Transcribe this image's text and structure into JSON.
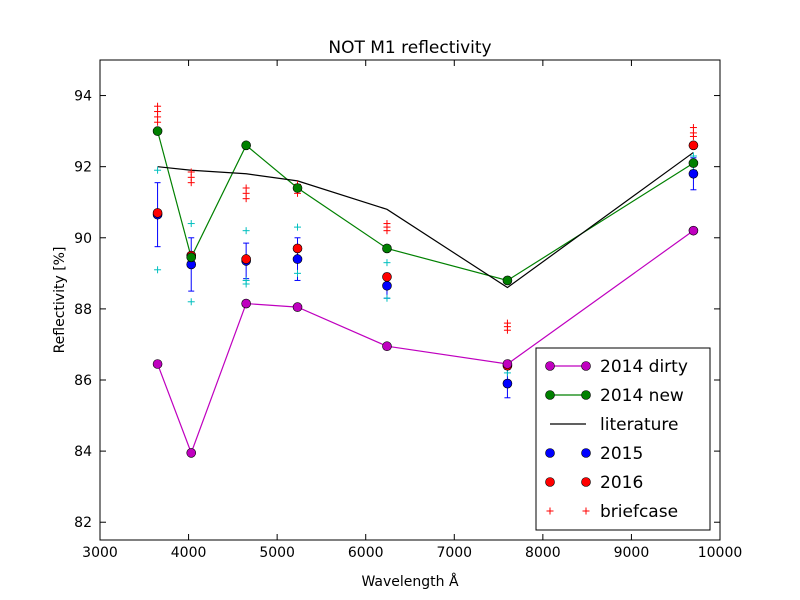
{
  "chart_data": {
    "type": "scatter",
    "title": "NOT M1 reflectivity",
    "xlabel": "Wavelength Å",
    "ylabel": "Reflectivity [%]",
    "xlim": [
      3000,
      10000
    ],
    "ylim": [
      81.5,
      95
    ],
    "xticks": [
      3000,
      4000,
      5000,
      6000,
      7000,
      8000,
      9000,
      10000
    ],
    "yticks": [
      82,
      84,
      86,
      88,
      90,
      92,
      94
    ],
    "grid": false,
    "legend_position": "bottom-right",
    "series": [
      {
        "name": "2014 dirty",
        "style": "line-marker",
        "color": "#bf00bf",
        "x": [
          3650,
          4030,
          4650,
          5230,
          6240,
          7600,
          9700
        ],
        "y": [
          86.45,
          83.95,
          88.15,
          88.05,
          86.95,
          86.45,
          90.2
        ]
      },
      {
        "name": "2014 new",
        "style": "line-marker",
        "color": "#008000",
        "x": [
          3650,
          4030,
          4650,
          5230,
          6240,
          7600,
          9700
        ],
        "y": [
          93.0,
          89.45,
          92.6,
          91.4,
          89.7,
          88.8,
          92.1
        ]
      },
      {
        "name": "literature",
        "style": "line",
        "color": "#000000",
        "x": [
          3650,
          4030,
          4650,
          5230,
          6240,
          7600,
          9700
        ],
        "y": [
          92.0,
          91.9,
          91.8,
          91.6,
          90.8,
          88.6,
          92.4
        ]
      },
      {
        "name": "2015",
        "style": "marker-errorbar",
        "color": "#0000ff",
        "x": [
          3650,
          4030,
          4650,
          5230,
          6240,
          7600,
          9700
        ],
        "y": [
          90.65,
          89.25,
          89.35,
          89.4,
          88.65,
          85.9,
          91.8
        ],
        "yerr": [
          0.9,
          0.75,
          0.5,
          0.6,
          0.35,
          0.4,
          0.45
        ]
      },
      {
        "name": "2016",
        "style": "marker",
        "color": "#ff0000",
        "x": [
          3650,
          4030,
          4650,
          5230,
          6240,
          7600,
          9700
        ],
        "y": [
          90.7,
          89.5,
          89.4,
          89.7,
          88.9,
          86.4,
          92.6
        ]
      },
      {
        "name": "briefcase",
        "style": "plus",
        "color": "#ff0000",
        "x": [
          3650,
          3650,
          3650,
          3650,
          4030,
          4030,
          4030,
          4650,
          4650,
          4650,
          5230,
          5230,
          6240,
          6240,
          6240,
          7600,
          7600,
          7600,
          9700,
          9700,
          9700
        ],
        "y": [
          93.7,
          93.55,
          93.4,
          93.25,
          91.85,
          91.7,
          91.55,
          91.4,
          91.25,
          91.1,
          91.5,
          91.25,
          90.4,
          90.3,
          90.2,
          87.6,
          87.5,
          87.4,
          93.1,
          92.95,
          92.85
        ]
      },
      {
        "name": "",
        "style": "plus",
        "color": "#00bfbf",
        "x": [
          3650,
          3650,
          4030,
          4030,
          4650,
          4650,
          4650,
          5230,
          5230,
          6240,
          6240,
          7600,
          9700,
          9700
        ],
        "y": [
          91.9,
          89.1,
          90.4,
          88.2,
          90.2,
          88.8,
          88.7,
          90.3,
          89.0,
          89.3,
          88.3,
          86.2,
          92.3,
          91.9
        ]
      }
    ],
    "legend": [
      {
        "label": "2014 dirty",
        "style": "line-marker",
        "color": "#bf00bf"
      },
      {
        "label": "2014 new",
        "style": "line-marker",
        "color": "#008000"
      },
      {
        "label": "literature",
        "style": "line",
        "color": "#000000"
      },
      {
        "label": "2015",
        "style": "marker",
        "color": "#0000ff"
      },
      {
        "label": "2016",
        "style": "marker",
        "color": "#ff0000"
      },
      {
        "label": "briefcase",
        "style": "plus",
        "color": "#ff0000"
      }
    ]
  }
}
